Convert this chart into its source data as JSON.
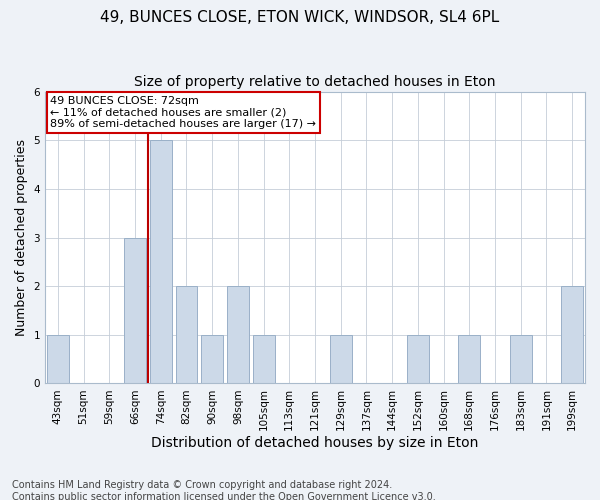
{
  "title1": "49, BUNCES CLOSE, ETON WICK, WINDSOR, SL4 6PL",
  "title2": "Size of property relative to detached houses in Eton",
  "xlabel": "Distribution of detached houses by size in Eton",
  "ylabel": "Number of detached properties",
  "categories": [
    "43sqm",
    "51sqm",
    "59sqm",
    "66sqm",
    "74sqm",
    "82sqm",
    "90sqm",
    "98sqm",
    "105sqm",
    "113sqm",
    "121sqm",
    "129sqm",
    "137sqm",
    "144sqm",
    "152sqm",
    "160sqm",
    "168sqm",
    "176sqm",
    "183sqm",
    "191sqm",
    "199sqm"
  ],
  "values": [
    1,
    0,
    0,
    3,
    5,
    2,
    1,
    2,
    1,
    0,
    0,
    1,
    0,
    0,
    1,
    0,
    1,
    0,
    1,
    0,
    2
  ],
  "bar_color": "#ccd9e8",
  "bar_edge_color": "#9ab0c8",
  "subject_line_index": 4,
  "subject_line_color": "#bb0000",
  "annotation_line1": "49 BUNCES CLOSE: 72sqm",
  "annotation_line2": "← 11% of detached houses are smaller (2)",
  "annotation_line3": "89% of semi-detached houses are larger (17) →",
  "annotation_box_color": "#cc0000",
  "ylim": [
    0,
    6
  ],
  "yticks": [
    0,
    1,
    2,
    3,
    4,
    5,
    6
  ],
  "footer_line1": "Contains HM Land Registry data © Crown copyright and database right 2024.",
  "footer_line2": "Contains public sector information licensed under the Open Government Licence v3.0.",
  "bg_color": "#eef2f7",
  "plot_bg_color": "#ffffff",
  "title1_fontsize": 11,
  "title2_fontsize": 10,
  "xlabel_fontsize": 10,
  "ylabel_fontsize": 9,
  "tick_fontsize": 7.5,
  "annotation_fontsize": 8,
  "footer_fontsize": 7
}
